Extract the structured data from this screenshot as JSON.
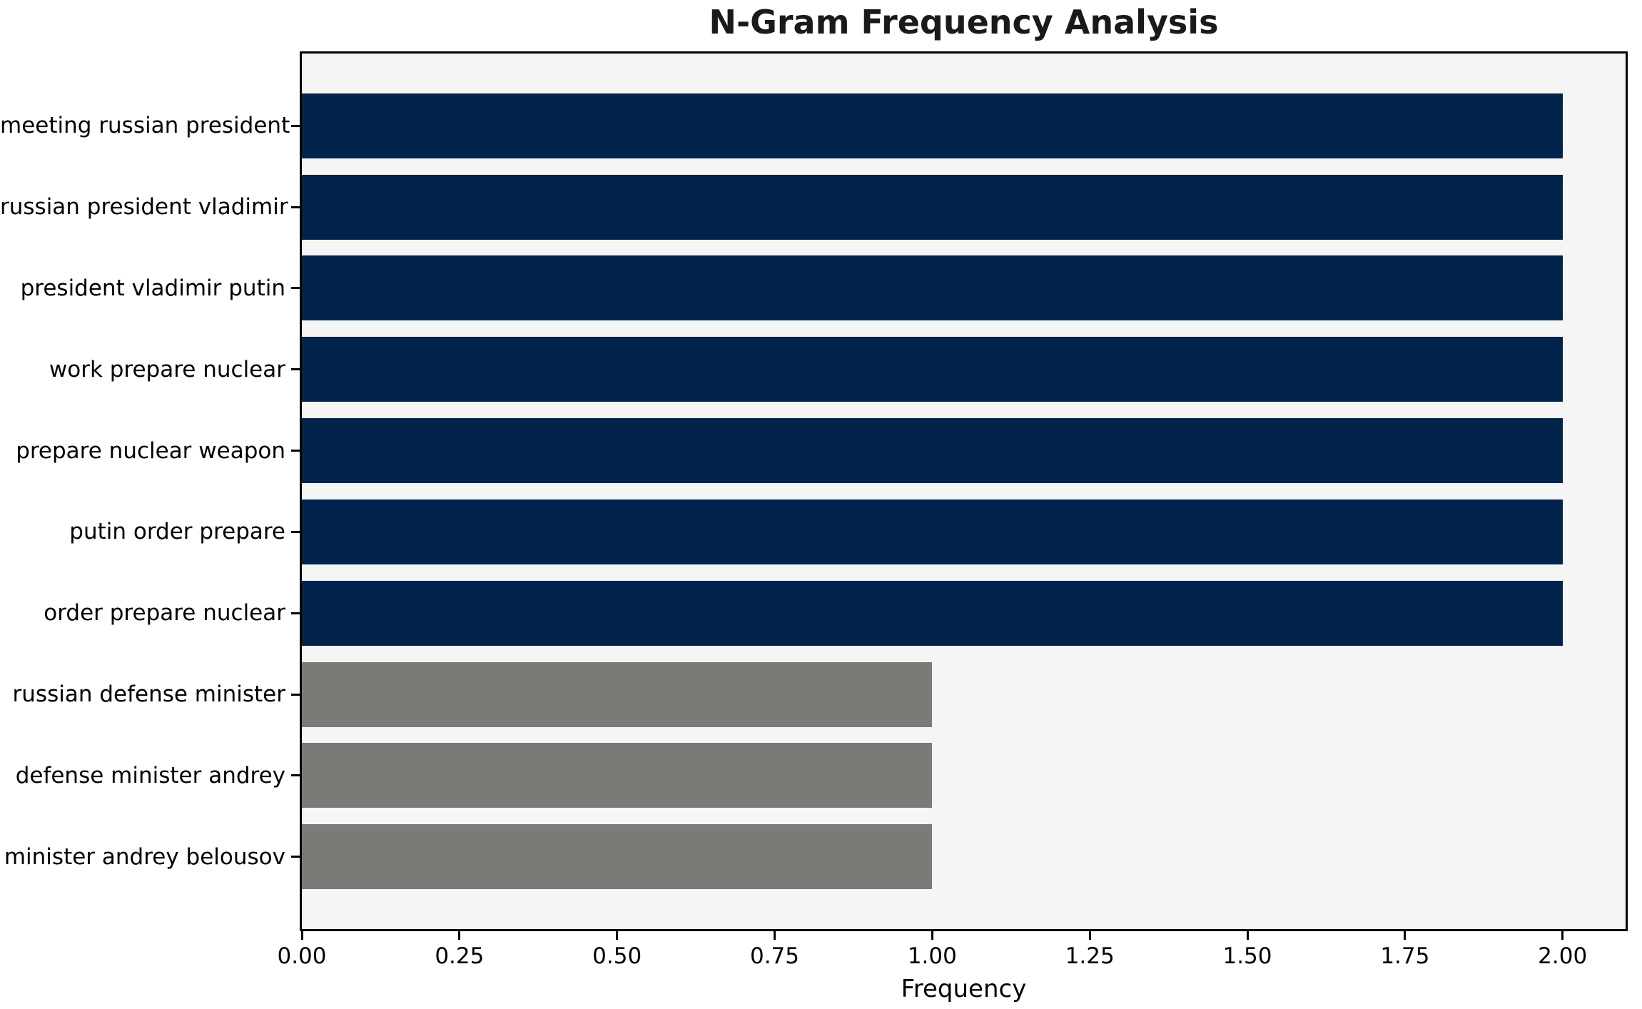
{
  "chart_data": {
    "type": "bar",
    "orientation": "horizontal",
    "title": "N-Gram Frequency Analysis",
    "xlabel": "Frequency",
    "ylabel": "",
    "categories": [
      "meeting russian president",
      "russian president vladimir",
      "president vladimir putin",
      "work prepare nuclear",
      "prepare nuclear weapon",
      "putin order prepare",
      "order prepare nuclear",
      "russian defense minister",
      "defense minister andrey",
      "minister andrey belousov"
    ],
    "values": [
      2,
      2,
      2,
      2,
      2,
      2,
      2,
      1,
      1,
      1
    ],
    "bar_colors": [
      "#02234C",
      "#02234C",
      "#02234C",
      "#02234C",
      "#02234C",
      "#02234C",
      "#02234C",
      "#7B7A77",
      "#7B7A77",
      "#7B7A77"
    ],
    "bar_height_ratio": 0.8,
    "xlim": [
      0,
      2.1
    ],
    "xtick_values": [
      0,
      0.25,
      0.5,
      0.75,
      1.0,
      1.25,
      1.5,
      1.75,
      2.0
    ],
    "xtick_labels": [
      "0.00",
      "0.25",
      "0.50",
      "0.75",
      "1.00",
      "1.25",
      "1.50",
      "1.75",
      "2.00"
    ],
    "grid": false,
    "legend": "none",
    "colors": {
      "navy": "#02234C",
      "gray": "#7B7A77",
      "plot_background": "#F5F5F5",
      "figure_background": "#FFFFFF",
      "spine": "#000000",
      "text": "#000000"
    }
  }
}
